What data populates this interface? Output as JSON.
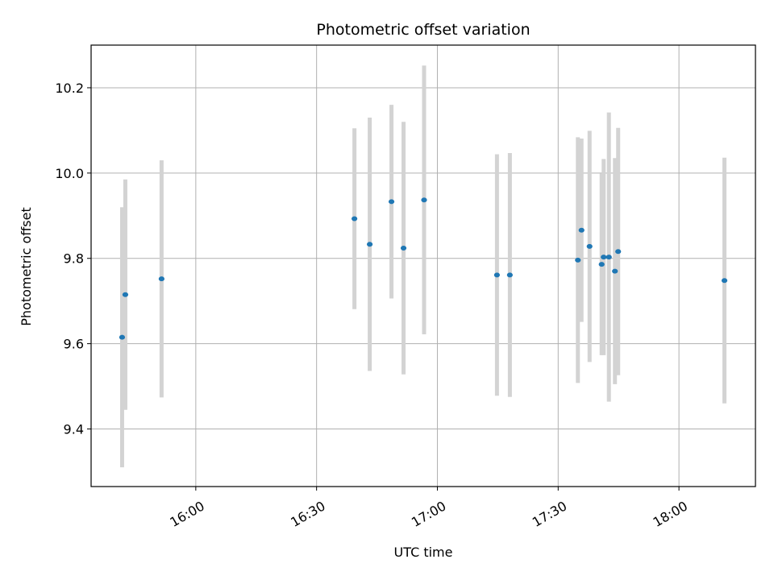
{
  "chart_data": {
    "type": "scatter",
    "title": "Photometric offset variation",
    "xlabel": "UTC time",
    "ylabel": "Photometric offset",
    "x_axis": "time",
    "xlim": [
      "15:34",
      "18:19"
    ],
    "ylim": [
      9.265,
      10.3
    ],
    "xticks": [
      "16:00",
      "16:30",
      "17:00",
      "17:30",
      "18:00"
    ],
    "yticks": [
      9.4,
      9.6,
      9.8,
      10.0,
      10.2
    ],
    "ytick_labels": [
      "9.4",
      "9.6",
      "9.8",
      "10.0",
      "10.2"
    ],
    "grid": true,
    "colors": {
      "point": "#1f77b4",
      "errorbar": "#d3d3d3",
      "grid": "#b0b0b0"
    },
    "points": [
      {
        "x": "15:41:42",
        "y": 9.615,
        "yerr": 0.305
      },
      {
        "x": "15:42:30",
        "y": 9.715,
        "yerr": 0.27
      },
      {
        "x": "15:51:30",
        "y": 9.752,
        "yerr": 0.278
      },
      {
        "x": "16:39:24",
        "y": 9.893,
        "yerr": 0.212
      },
      {
        "x": "16:43:12",
        "y": 9.833,
        "yerr": 0.297
      },
      {
        "x": "16:48:36",
        "y": 9.933,
        "yerr": 0.227
      },
      {
        "x": "16:51:36",
        "y": 9.824,
        "yerr": 0.296
      },
      {
        "x": "16:56:42",
        "y": 9.937,
        "yerr": 0.315
      },
      {
        "x": "17:14:48",
        "y": 9.761,
        "yerr": 0.283
      },
      {
        "x": "17:18:00",
        "y": 9.761,
        "yerr": 0.286
      },
      {
        "x": "17:34:54",
        "y": 9.796,
        "yerr": 0.288
      },
      {
        "x": "17:35:48",
        "y": 9.866,
        "yerr": 0.215
      },
      {
        "x": "17:37:48",
        "y": 9.828,
        "yerr": 0.271
      },
      {
        "x": "17:40:48",
        "y": 9.786,
        "yerr": 0.213
      },
      {
        "x": "17:41:18",
        "y": 9.803,
        "yerr": 0.23
      },
      {
        "x": "17:42:36",
        "y": 9.803,
        "yerr": 0.339
      },
      {
        "x": "17:44:06",
        "y": 9.77,
        "yerr": 0.265
      },
      {
        "x": "17:44:54",
        "y": 9.816,
        "yerr": 0.29
      },
      {
        "x": "18:11:18",
        "y": 9.748,
        "yerr": 0.288
      }
    ]
  }
}
